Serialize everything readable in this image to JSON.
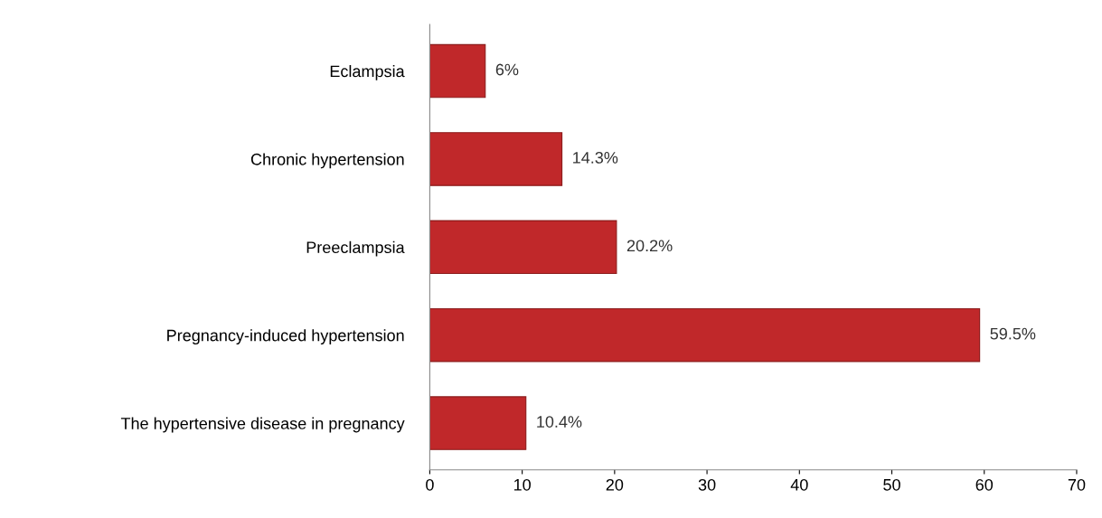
{
  "chart_data": {
    "type": "bar",
    "orientation": "horizontal",
    "categories": [
      "Eclampsia",
      "Chronic hypertension",
      "Preeclampsia",
      "Pregnancy-induced hypertension",
      "The hypertensive disease in pregnancy"
    ],
    "values": [
      6,
      14.3,
      20.2,
      59.5,
      10.4
    ],
    "value_labels": [
      "6%",
      "14.3%",
      "20.2%",
      "59.5%",
      "10.4%"
    ],
    "color": "#c0282a",
    "xlim": [
      0,
      70
    ],
    "xticks": [
      0,
      10,
      20,
      30,
      40,
      50,
      60,
      70
    ],
    "grid": false,
    "legend": false
  }
}
